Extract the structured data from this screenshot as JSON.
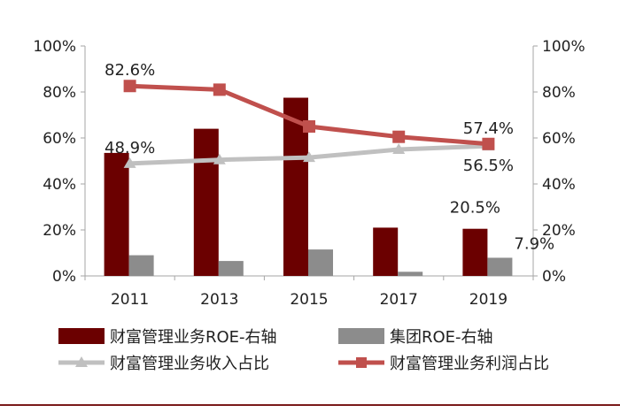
{
  "chart_data": {
    "type": "bar",
    "categories": [
      "2011",
      "2013",
      "2015",
      "2017",
      "2019"
    ],
    "ylim_left": [
      0,
      100
    ],
    "ylim_right": [
      0,
      100
    ],
    "y_ticks_left": [
      "0%",
      "20%",
      "40%",
      "60%",
      "80%",
      "100%"
    ],
    "y_ticks_right": [
      "0%",
      "20%",
      "40%",
      "60%",
      "80%",
      "100%"
    ],
    "grid": false,
    "legend_position": "bottom",
    "series": [
      {
        "name": "财富管理业务ROE-右轴",
        "kind": "bar",
        "axis": "left",
        "color": "#6b0000",
        "values": [
          53.5,
          64,
          77.5,
          21,
          20.5
        ]
      },
      {
        "name": "集团ROE-右轴",
        "kind": "bar",
        "axis": "left",
        "color": "#8c8c8c",
        "values": [
          9,
          6.5,
          11.5,
          1.8,
          7.9
        ]
      },
      {
        "name": "财富管理业务收入占比",
        "kind": "line",
        "axis": "right",
        "color": "#c0c0c0",
        "marker": "triangle",
        "values": [
          48.9,
          50.5,
          51.5,
          55,
          56.5
        ]
      },
      {
        "name": "财富管理业务利润占比",
        "kind": "line",
        "axis": "right",
        "color": "#c0504d",
        "marker": "square",
        "values": [
          82.6,
          81,
          65,
          60.5,
          57.4
        ]
      }
    ],
    "data_labels": [
      {
        "series": 3,
        "index": 0,
        "text": "82.6%",
        "pos": "above"
      },
      {
        "series": 2,
        "index": 0,
        "text": "48.9%",
        "pos": "above"
      },
      {
        "series": 3,
        "index": 4,
        "text": "57.4%",
        "pos": "above"
      },
      {
        "series": 2,
        "index": 4,
        "text": "56.5%",
        "pos": "below"
      },
      {
        "series": 0,
        "index": 4,
        "text": "20.5%",
        "pos": "above"
      },
      {
        "series": 1,
        "index": 4,
        "text": "7.9%",
        "pos": "right"
      }
    ]
  }
}
